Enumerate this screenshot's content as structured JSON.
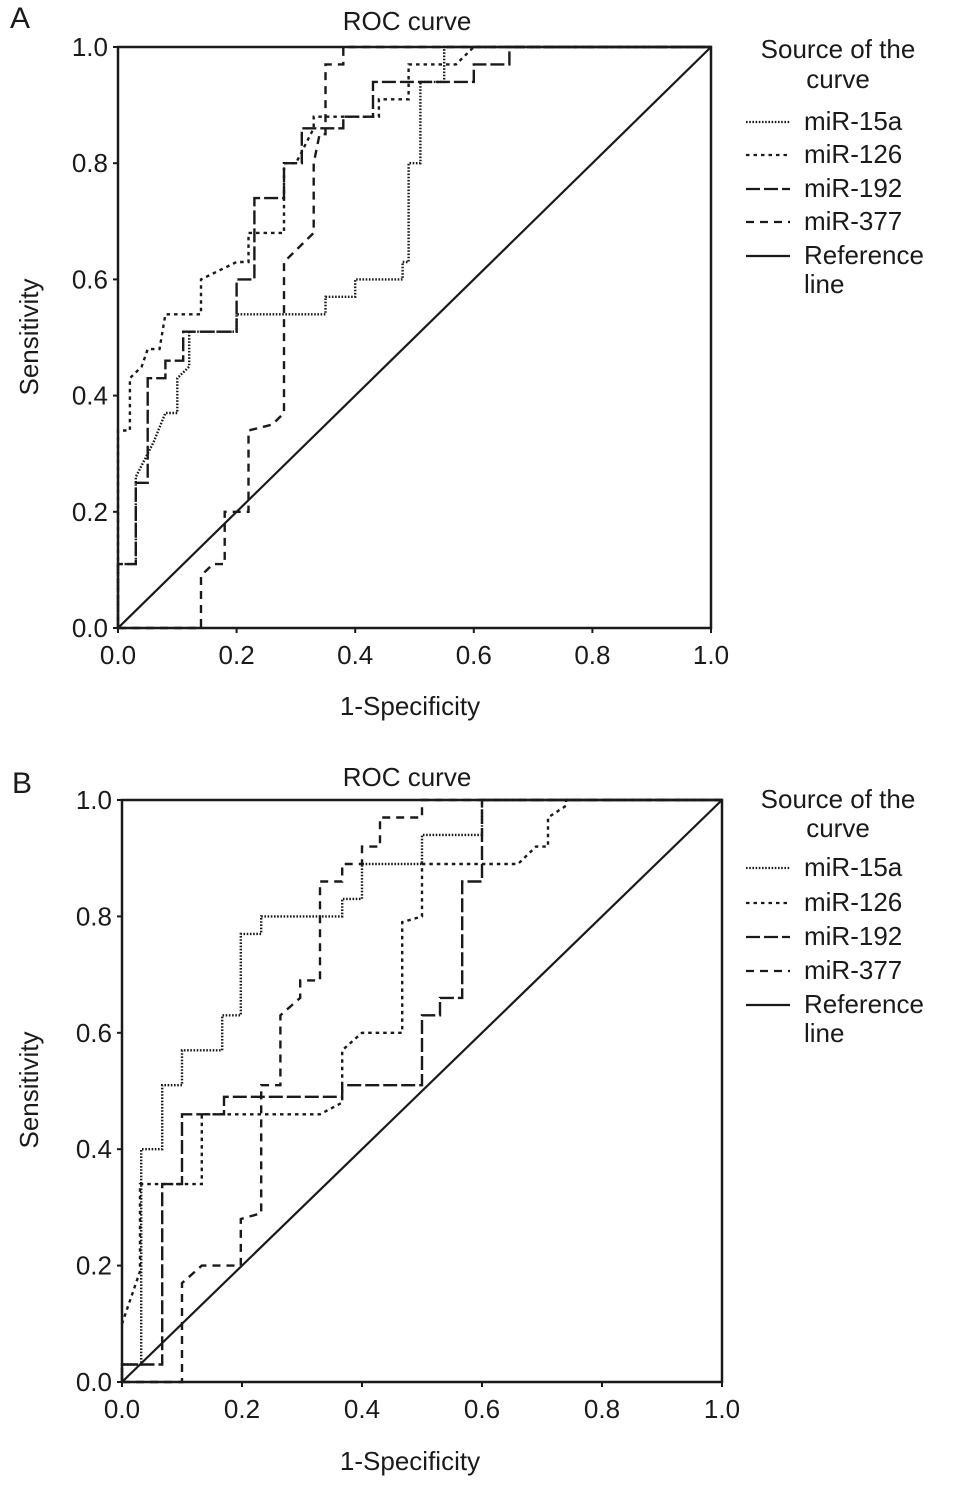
{
  "chart_data": [
    {
      "panel_label": "A",
      "type": "line",
      "title": "ROC curve",
      "xlabel": "1-Specificity",
      "ylabel": "Sensitivity",
      "xlim": [
        0,
        1
      ],
      "ylim": [
        0,
        1
      ],
      "xticks": [
        "0.0",
        "0.2",
        "0.4",
        "0.6",
        "0.8",
        "1.0"
      ],
      "yticks": [
        "0.0",
        "0.2",
        "0.4",
        "0.6",
        "0.8",
        "1.0"
      ],
      "grid": false,
      "legend_title": [
        "Source of the",
        "curve"
      ],
      "legend_position": "right",
      "series": [
        {
          "name": "miR-15a",
          "style": "dotted",
          "points": [
            [
              0,
              0
            ],
            [
              0,
              0.11
            ],
            [
              0.03,
              0.11
            ],
            [
              0.03,
              0.26
            ],
            [
              0.06,
              0.32
            ],
            [
              0.08,
              0.37
            ],
            [
              0.1,
              0.37
            ],
            [
              0.1,
              0.43
            ],
            [
              0.12,
              0.45
            ],
            [
              0.12,
              0.51
            ],
            [
              0.2,
              0.51
            ],
            [
              0.2,
              0.54
            ],
            [
              0.35,
              0.54
            ],
            [
              0.35,
              0.57
            ],
            [
              0.4,
              0.57
            ],
            [
              0.4,
              0.6
            ],
            [
              0.48,
              0.6
            ],
            [
              0.48,
              0.63
            ],
            [
              0.49,
              0.63
            ],
            [
              0.49,
              0.8
            ],
            [
              0.51,
              0.8
            ],
            [
              0.51,
              0.94
            ],
            [
              0.55,
              0.94
            ],
            [
              0.55,
              1
            ],
            [
              1,
              1
            ]
          ]
        },
        {
          "name": "miR-126",
          "style": "short-dash",
          "points": [
            [
              0,
              0
            ],
            [
              0,
              0.34
            ],
            [
              0.02,
              0.34
            ],
            [
              0.02,
              0.43
            ],
            [
              0.04,
              0.45
            ],
            [
              0.05,
              0.48
            ],
            [
              0.07,
              0.48
            ],
            [
              0.08,
              0.54
            ],
            [
              0.14,
              0.54
            ],
            [
              0.14,
              0.6
            ],
            [
              0.18,
              0.62
            ],
            [
              0.2,
              0.63
            ],
            [
              0.22,
              0.63
            ],
            [
              0.22,
              0.68
            ],
            [
              0.28,
              0.68
            ],
            [
              0.28,
              0.8
            ],
            [
              0.3,
              0.8
            ],
            [
              0.33,
              0.86
            ],
            [
              0.33,
              0.88
            ],
            [
              0.44,
              0.88
            ],
            [
              0.44,
              0.91
            ],
            [
              0.49,
              0.91
            ],
            [
              0.49,
              0.97
            ],
            [
              0.57,
              0.97
            ],
            [
              0.6,
              1
            ],
            [
              1,
              1
            ]
          ]
        },
        {
          "name": "miR-192",
          "style": "long-dash",
          "points": [
            [
              0,
              0
            ],
            [
              0,
              0.11
            ],
            [
              0.03,
              0.11
            ],
            [
              0.03,
              0.25
            ],
            [
              0.05,
              0.25
            ],
            [
              0.05,
              0.43
            ],
            [
              0.08,
              0.43
            ],
            [
              0.08,
              0.46
            ],
            [
              0.11,
              0.46
            ],
            [
              0.11,
              0.51
            ],
            [
              0.2,
              0.51
            ],
            [
              0.2,
              0.6
            ],
            [
              0.23,
              0.6
            ],
            [
              0.23,
              0.74
            ],
            [
              0.28,
              0.74
            ],
            [
              0.28,
              0.8
            ],
            [
              0.31,
              0.8
            ],
            [
              0.31,
              0.86
            ],
            [
              0.38,
              0.86
            ],
            [
              0.38,
              0.88
            ],
            [
              0.43,
              0.88
            ],
            [
              0.43,
              0.94
            ],
            [
              0.6,
              0.94
            ],
            [
              0.6,
              0.97
            ],
            [
              0.66,
              0.97
            ],
            [
              0.66,
              1
            ],
            [
              1,
              1
            ]
          ]
        },
        {
          "name": "miR-377",
          "style": "dash",
          "points": [
            [
              0,
              0
            ],
            [
              0.14,
              0
            ],
            [
              0.14,
              0.09
            ],
            [
              0.16,
              0.11
            ],
            [
              0.18,
              0.11
            ],
            [
              0.18,
              0.2
            ],
            [
              0.22,
              0.2
            ],
            [
              0.22,
              0.34
            ],
            [
              0.26,
              0.35
            ],
            [
              0.28,
              0.37
            ],
            [
              0.28,
              0.63
            ],
            [
              0.31,
              0.66
            ],
            [
              0.33,
              0.68
            ],
            [
              0.33,
              0.8
            ],
            [
              0.34,
              0.85
            ],
            [
              0.35,
              0.85
            ],
            [
              0.35,
              0.97
            ],
            [
              0.38,
              0.97
            ],
            [
              0.38,
              1
            ],
            [
              1,
              1
            ]
          ]
        },
        {
          "name": "Reference line",
          "legend_lines": [
            "Reference",
            "line"
          ],
          "style": "solid",
          "points": [
            [
              0,
              0
            ],
            [
              1,
              1
            ]
          ]
        }
      ]
    },
    {
      "panel_label": "B",
      "type": "line",
      "title": "ROC curve",
      "xlabel": "1-Specificity",
      "ylabel": "Sensitivity",
      "xlim": [
        0,
        1
      ],
      "ylim": [
        0,
        1
      ],
      "xticks": [
        "0.0",
        "0.2",
        "0.4",
        "0.6",
        "0.8",
        "1.0"
      ],
      "yticks": [
        "0.0",
        "0.2",
        "0.4",
        "0.6",
        "0.8",
        "1.0"
      ],
      "grid": false,
      "legend_title": [
        "Source of the",
        "curve"
      ],
      "legend_position": "right",
      "series": [
        {
          "name": "miR-15a",
          "style": "dotted",
          "points": [
            [
              0,
              0
            ],
            [
              0,
              0.03
            ],
            [
              0.032,
              0.03
            ],
            [
              0.032,
              0.4
            ],
            [
              0.067,
              0.4
            ],
            [
              0.067,
              0.51
            ],
            [
              0.1,
              0.51
            ],
            [
              0.1,
              0.57
            ],
            [
              0.167,
              0.57
            ],
            [
              0.167,
              0.63
            ],
            [
              0.198,
              0.63
            ],
            [
              0.198,
              0.77
            ],
            [
              0.232,
              0.77
            ],
            [
              0.232,
              0.8
            ],
            [
              0.367,
              0.8
            ],
            [
              0.367,
              0.83
            ],
            [
              0.4,
              0.83
            ],
            [
              0.4,
              0.89
            ],
            [
              0.5,
              0.89
            ],
            [
              0.5,
              0.94
            ],
            [
              0.6,
              0.94
            ],
            [
              0.6,
              1
            ],
            [
              1,
              1
            ]
          ]
        },
        {
          "name": "miR-126",
          "style": "short-dash",
          "points": [
            [
              0,
              0.1
            ],
            [
              0.03,
              0.19
            ],
            [
              0.03,
              0.34
            ],
            [
              0.133,
              0.34
            ],
            [
              0.133,
              0.46
            ],
            [
              0.33,
              0.46
            ],
            [
              0.367,
              0.48
            ],
            [
              0.367,
              0.57
            ],
            [
              0.4,
              0.6
            ],
            [
              0.467,
              0.6
            ],
            [
              0.467,
              0.79
            ],
            [
              0.5,
              0.8
            ],
            [
              0.5,
              0.89
            ],
            [
              0.66,
              0.89
            ],
            [
              0.69,
              0.92
            ],
            [
              0.71,
              0.92
            ],
            [
              0.71,
              0.97
            ],
            [
              0.74,
              0.99
            ],
            [
              0.74,
              1
            ],
            [
              1,
              1
            ]
          ]
        },
        {
          "name": "miR-192",
          "style": "long-dash",
          "points": [
            [
              0,
              0
            ],
            [
              0,
              0.03
            ],
            [
              0.067,
              0.03
            ],
            [
              0.067,
              0.34
            ],
            [
              0.1,
              0.34
            ],
            [
              0.1,
              0.46
            ],
            [
              0.17,
              0.46
            ],
            [
              0.17,
              0.49
            ],
            [
              0.367,
              0.49
            ],
            [
              0.367,
              0.51
            ],
            [
              0.5,
              0.51
            ],
            [
              0.5,
              0.63
            ],
            [
              0.53,
              0.63
            ],
            [
              0.53,
              0.66
            ],
            [
              0.567,
              0.66
            ],
            [
              0.567,
              0.86
            ],
            [
              0.6,
              0.86
            ],
            [
              0.6,
              1
            ],
            [
              1,
              1
            ]
          ]
        },
        {
          "name": "miR-377",
          "style": "dash",
          "points": [
            [
              0,
              0
            ],
            [
              0.1,
              0
            ],
            [
              0.1,
              0.17
            ],
            [
              0.133,
              0.2
            ],
            [
              0.198,
              0.2
            ],
            [
              0.198,
              0.28
            ],
            [
              0.232,
              0.29
            ],
            [
              0.232,
              0.51
            ],
            [
              0.264,
              0.51
            ],
            [
              0.264,
              0.63
            ],
            [
              0.297,
              0.66
            ],
            [
              0.297,
              0.69
            ],
            [
              0.33,
              0.69
            ],
            [
              0.33,
              0.86
            ],
            [
              0.367,
              0.86
            ],
            [
              0.367,
              0.89
            ],
            [
              0.4,
              0.89
            ],
            [
              0.4,
              0.92
            ],
            [
              0.43,
              0.92
            ],
            [
              0.43,
              0.97
            ],
            [
              0.5,
              0.97
            ],
            [
              0.5,
              1
            ],
            [
              1,
              1
            ]
          ]
        },
        {
          "name": "Reference line",
          "legend_lines": [
            "Reference",
            "line"
          ],
          "style": "solid",
          "points": [
            [
              0,
              0
            ],
            [
              1,
              1
            ]
          ]
        }
      ]
    }
  ]
}
